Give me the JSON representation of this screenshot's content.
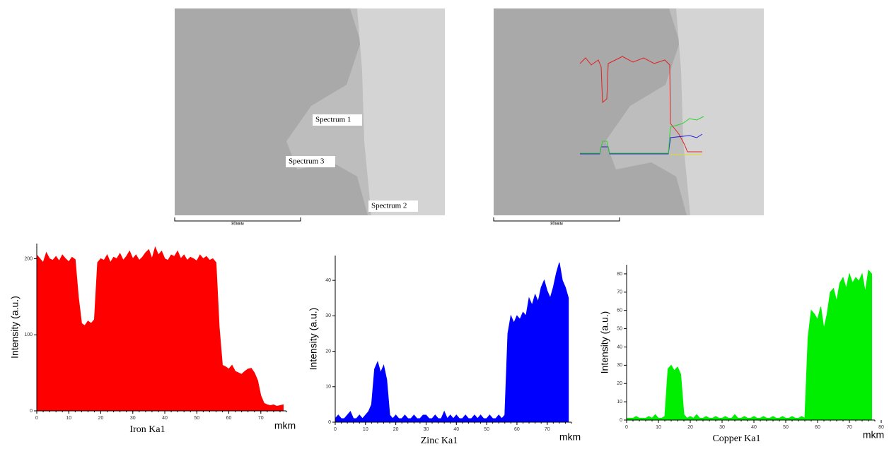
{
  "images": [
    {
      "labels": [
        "Spectrum 1",
        "Spectrum 3",
        "Spectrum 2"
      ],
      "scale_label": "80мкм"
    },
    {
      "scale_label": "80мкм"
    }
  ],
  "chart_data": [
    {
      "type": "area",
      "color": "#ff0000",
      "ylabel": "Intensity (a.u.)",
      "xlabel": "Iron Ka1",
      "xunit": "mkm",
      "x": [
        0,
        1,
        2,
        3,
        4,
        5,
        6,
        7,
        8,
        9,
        10,
        11,
        12,
        13,
        14,
        15,
        16,
        17,
        18,
        19,
        20,
        21,
        22,
        23,
        24,
        25,
        26,
        27,
        28,
        29,
        30,
        31,
        32,
        33,
        34,
        35,
        36,
        37,
        38,
        39,
        40,
        41,
        42,
        43,
        44,
        45,
        46,
        47,
        48,
        49,
        50,
        51,
        52,
        53,
        54,
        55,
        56,
        57,
        58,
        59,
        60,
        61,
        62,
        63,
        64,
        65,
        66,
        67,
        68,
        69,
        70,
        71,
        72,
        73,
        74,
        75,
        76,
        77
      ],
      "values": [
        205,
        200,
        195,
        208,
        200,
        198,
        203,
        197,
        205,
        200,
        196,
        202,
        199,
        150,
        115,
        112,
        118,
        115,
        120,
        195,
        200,
        198,
        205,
        195,
        202,
        200,
        207,
        198,
        203,
        210,
        200,
        205,
        198,
        202,
        208,
        212,
        200,
        215,
        205,
        210,
        200,
        198,
        205,
        203,
        210,
        200,
        205,
        198,
        202,
        200,
        197,
        205,
        200,
        203,
        198,
        200,
        195,
        110,
        60,
        58,
        55,
        60,
        52,
        50,
        48,
        52,
        55,
        56,
        50,
        40,
        20,
        10,
        8,
        7,
        8,
        6,
        7,
        8
      ],
      "xlim": [
        0,
        78
      ],
      "xticks": [
        0,
        10,
        20,
        30,
        40,
        50,
        60,
        70
      ],
      "ylim": [
        0,
        220
      ],
      "yticks": [
        0,
        100,
        200
      ]
    },
    {
      "type": "area",
      "color": "#0000ff",
      "ylabel": "Intensity (a.u.)",
      "xlabel": "Zinc Ka1",
      "xunit": "mkm",
      "x": [
        0,
        1,
        2,
        3,
        4,
        5,
        6,
        7,
        8,
        9,
        10,
        11,
        12,
        13,
        14,
        15,
        16,
        17,
        18,
        19,
        20,
        21,
        22,
        23,
        24,
        25,
        26,
        27,
        28,
        29,
        30,
        31,
        32,
        33,
        34,
        35,
        36,
        37,
        38,
        39,
        40,
        41,
        42,
        43,
        44,
        45,
        46,
        47,
        48,
        49,
        50,
        51,
        52,
        53,
        54,
        55,
        56,
        57,
        58,
        59,
        60,
        61,
        62,
        63,
        64,
        65,
        66,
        67,
        68,
        69,
        70,
        71,
        72,
        73,
        74,
        75,
        76,
        77
      ],
      "values": [
        1,
        2,
        1,
        1,
        2,
        3,
        1,
        1,
        2,
        1,
        2,
        3,
        5,
        15,
        17,
        14,
        16,
        12,
        2,
        1,
        2,
        1,
        1,
        2,
        1,
        1,
        2,
        1,
        1,
        2,
        2,
        1,
        1,
        2,
        1,
        1,
        3,
        1,
        2,
        1,
        2,
        1,
        1,
        2,
        1,
        1,
        2,
        1,
        2,
        1,
        1,
        2,
        1,
        1,
        2,
        1,
        2,
        25,
        30,
        28,
        30,
        29,
        31,
        30,
        35,
        33,
        36,
        34,
        38,
        40,
        37,
        35,
        38,
        42,
        45,
        40,
        38,
        35
      ],
      "xlim": [
        0,
        78
      ],
      "xticks": [
        0,
        10,
        20,
        30,
        40,
        50,
        60,
        70
      ],
      "ylim": [
        0,
        47
      ],
      "yticks": [
        0,
        10,
        20,
        30,
        40
      ]
    },
    {
      "type": "area",
      "color": "#00ee00",
      "ylabel": "Intensity (a.u.)",
      "xlabel": "Copper Ka1",
      "xunit": "mkm",
      "x": [
        0,
        1,
        2,
        3,
        4,
        5,
        6,
        7,
        8,
        9,
        10,
        11,
        12,
        13,
        14,
        15,
        16,
        17,
        18,
        19,
        20,
        21,
        22,
        23,
        24,
        25,
        26,
        27,
        28,
        29,
        30,
        31,
        32,
        33,
        34,
        35,
        36,
        37,
        38,
        39,
        40,
        41,
        42,
        43,
        44,
        45,
        46,
        47,
        48,
        49,
        50,
        51,
        52,
        53,
        54,
        55,
        56,
        57,
        58,
        59,
        60,
        61,
        62,
        63,
        64,
        65,
        66,
        67,
        68,
        69,
        70,
        71,
        72,
        73,
        74,
        75,
        76,
        77
      ],
      "values": [
        1,
        1,
        1,
        2,
        1,
        1,
        1,
        2,
        1,
        3,
        1,
        1,
        2,
        28,
        30,
        27,
        29,
        25,
        3,
        1,
        2,
        1,
        3,
        1,
        1,
        2,
        1,
        1,
        2,
        1,
        1,
        2,
        1,
        1,
        3,
        1,
        1,
        2,
        1,
        1,
        2,
        1,
        1,
        2,
        1,
        1,
        2,
        1,
        1,
        2,
        1,
        1,
        2,
        1,
        1,
        2,
        1,
        45,
        60,
        58,
        55,
        62,
        50,
        58,
        70,
        72,
        65,
        75,
        78,
        72,
        80,
        75,
        78,
        76,
        80,
        70,
        82,
        80
      ],
      "xlim": [
        0,
        78
      ],
      "xticks": [
        0,
        10,
        20,
        30,
        40,
        50,
        60,
        70,
        80
      ],
      "ylim": [
        0,
        85
      ],
      "yticks": [
        0,
        10,
        20,
        30,
        40,
        50,
        60,
        70,
        80
      ]
    }
  ]
}
